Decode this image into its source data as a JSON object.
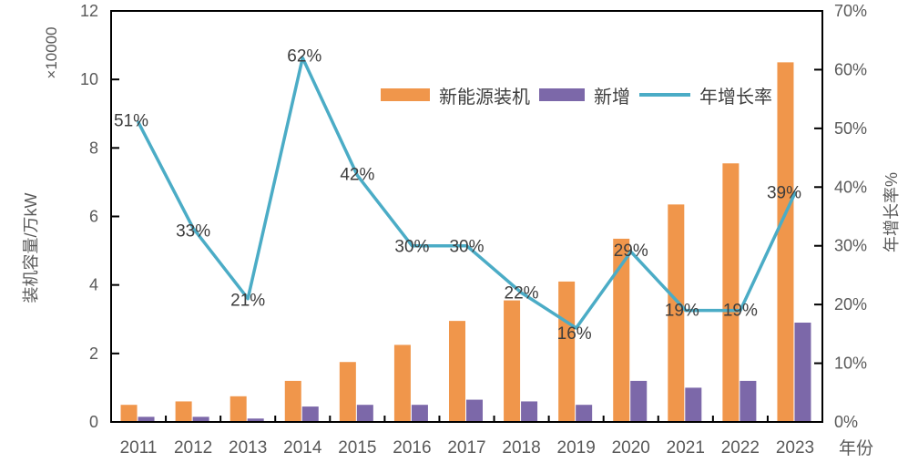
{
  "chart_data": {
    "type": "bar+line",
    "categories": [
      "2011",
      "2012",
      "2013",
      "2014",
      "2015",
      "2016",
      "2017",
      "2018",
      "2019",
      "2020",
      "2021",
      "2022",
      "2023"
    ],
    "series": [
      {
        "name": "新能源装机",
        "type": "bar",
        "axis": "left",
        "color": "#F0964B",
        "values": [
          0.5,
          0.6,
          0.75,
          1.2,
          1.75,
          2.25,
          2.95,
          3.55,
          4.1,
          5.35,
          6.35,
          7.55,
          10.5
        ]
      },
      {
        "name": "新增",
        "type": "bar",
        "axis": "left",
        "color": "#7C68A9",
        "values": [
          0.15,
          0.15,
          0.1,
          0.45,
          0.5,
          0.5,
          0.65,
          0.6,
          0.5,
          1.2,
          1.0,
          1.2,
          2.9
        ]
      },
      {
        "name": "年增长率",
        "type": "line",
        "axis": "right",
        "color": "#4BACC6",
        "values": [
          51,
          33,
          21,
          62,
          42,
          30,
          30,
          22,
          16,
          29,
          19,
          19,
          39
        ],
        "labels": [
          "51%",
          "33%",
          "21%",
          "62%",
          "42%",
          "30%",
          "30%",
          "22%",
          "16%",
          "29%",
          "19%",
          "19%",
          "39%"
        ],
        "label_offsets": [
          [
            -8,
            4
          ],
          [
            0,
            9
          ],
          [
            0,
            8
          ],
          [
            2,
            4
          ],
          [
            0,
            5
          ],
          [
            0,
            7
          ],
          [
            0,
            7
          ],
          [
            0,
            6
          ],
          [
            -2,
            12
          ],
          [
            0,
            5
          ],
          [
            -4,
            6
          ],
          [
            0,
            6
          ],
          [
            -12,
            6
          ]
        ]
      }
    ],
    "left_axis": {
      "title": "装机容量/万kW",
      "scale_note": "×10000",
      "min": 0,
      "max": 12,
      "ticks": [
        "0",
        "2",
        "4",
        "6",
        "8",
        "10",
        "12"
      ]
    },
    "right_axis": {
      "title": "年增长率%",
      "min": 0,
      "max": 70,
      "ticks": [
        "0%",
        "10%",
        "20%",
        "30%",
        "40%",
        "50%",
        "60%",
        "70%"
      ]
    },
    "x_axis": {
      "title": "年份"
    },
    "legend": {
      "position": "top-center"
    },
    "grid": "off",
    "colors": {
      "axis_line": "#000000",
      "tick_label": "#595959",
      "data_label": "#3d3d3d",
      "background": "#ffffff"
    }
  }
}
